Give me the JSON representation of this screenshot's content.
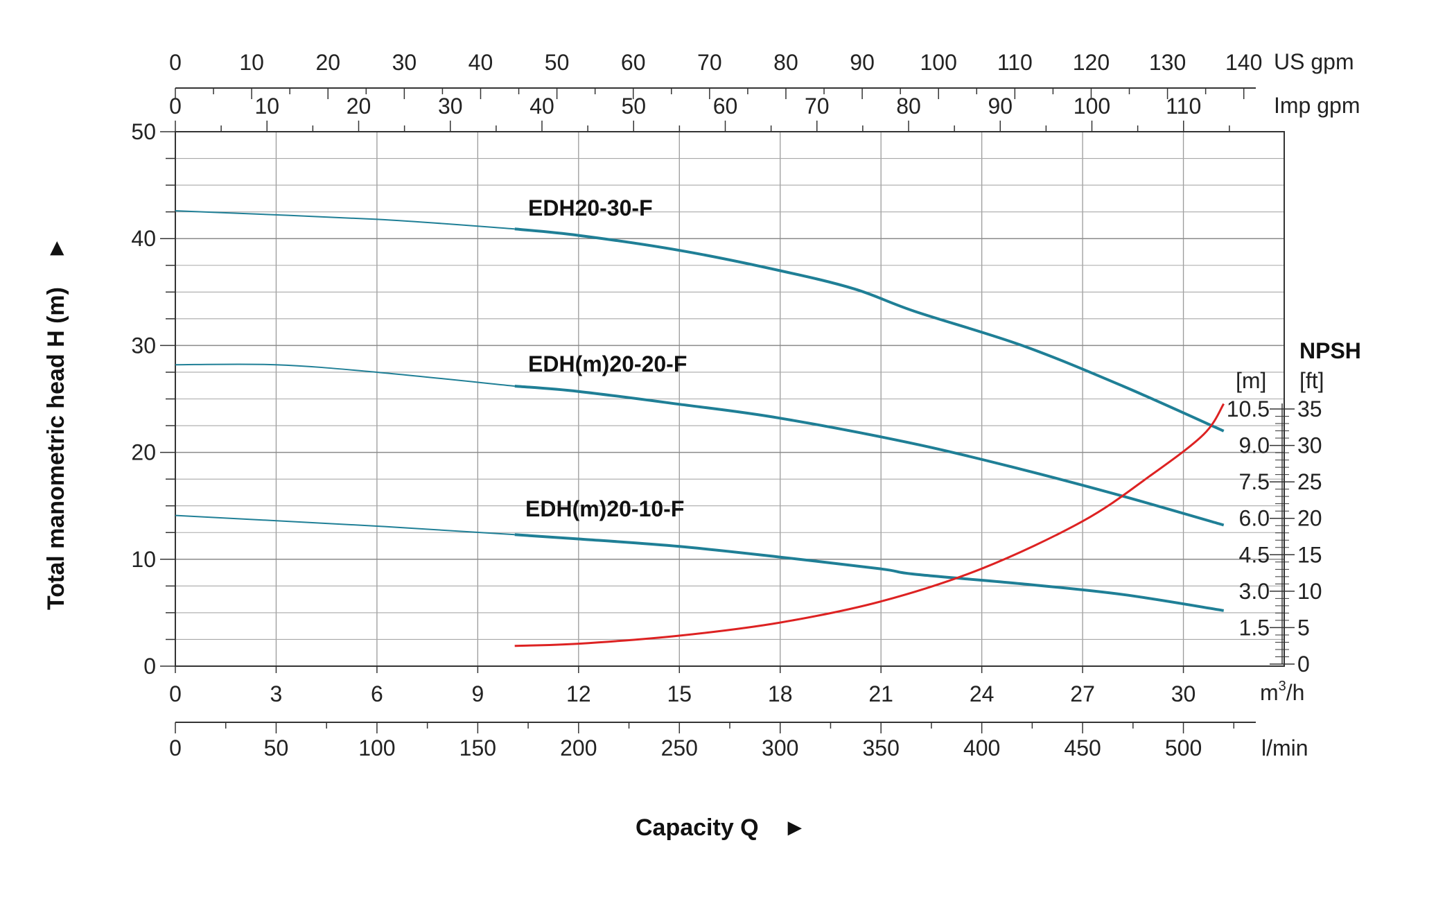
{
  "chart_data": {
    "type": "line",
    "xlabel": "Capacity Q",
    "ylabel": "Total manometric head H (m)",
    "xlim": [
      0,
      33
    ],
    "ylim": [
      0,
      50
    ],
    "x_ticks": [
      "0",
      "3",
      "6",
      "9",
      "12",
      "15",
      "18",
      "21",
      "24",
      "27",
      "30"
    ],
    "x_unit": "m³/h",
    "x_unit_base": "m",
    "x_unit_sup": "3",
    "x_unit_tail": "/h",
    "y_ticks": [
      "0",
      "10",
      "20",
      "30",
      "40",
      "50"
    ],
    "lpm_ticks": [
      "0",
      "50",
      "100",
      "150",
      "200",
      "250",
      "300",
      "350",
      "400",
      "450",
      "500"
    ],
    "lpm_unit": "l/min",
    "imp_ticks": [
      "0",
      "10",
      "20",
      "30",
      "40",
      "50",
      "60",
      "70",
      "80",
      "90",
      "100",
      "110"
    ],
    "imp_unit": "Imp gpm",
    "us_ticks": [
      "0",
      "10",
      "20",
      "30",
      "40",
      "50",
      "60",
      "70",
      "80",
      "90",
      "100",
      "110",
      "120",
      "130",
      "140"
    ],
    "us_unit": "US gpm",
    "npsh": {
      "title": "NPSH",
      "unit_m": "[m]",
      "unit_ft": "[ft]",
      "m_ticks": [
        "1.5",
        "3.0",
        "4.5",
        "6.0",
        "7.5",
        "9.0",
        "10.5"
      ],
      "ft_ticks": [
        "0",
        "5",
        "10",
        "15",
        "20",
        "25",
        "30",
        "35"
      ],
      "ylim_ft": [
        0,
        35
      ],
      "color": "#dd2222",
      "x": [
        10.1,
        12,
        15,
        18,
        21,
        24,
        27,
        29,
        30.6,
        31.2
      ],
      "y_ft": [
        2.5,
        2.8,
        3.9,
        5.7,
        8.6,
        13.1,
        19.6,
        25.8,
        31.5,
        35.7
      ]
    },
    "series": [
      {
        "name": "EDH20-30-F",
        "color": "#1f7f96",
        "x": [
          0,
          6,
          10.1,
          12,
          15,
          18,
          20.2,
          22,
          25.2,
          28.2,
          31.2
        ],
        "y": [
          42.6,
          41.8,
          40.9,
          40.3,
          38.9,
          37.0,
          35.3,
          33.2,
          30.0,
          26.2,
          22.0
        ]
      },
      {
        "name": "EDH(m)20-20-F",
        "color": "#1f7f96",
        "x": [
          0,
          3,
          6,
          10.1,
          12,
          15,
          18,
          22,
          25.2,
          28.2,
          31.2
        ],
        "y": [
          28.2,
          28.2,
          27.5,
          26.2,
          25.7,
          24.5,
          23.2,
          20.8,
          18.4,
          15.9,
          13.2
        ]
      },
      {
        "name": "EDH(m)20-10-F",
        "color": "#1f7f96",
        "x": [
          0,
          6,
          10.1,
          12,
          15,
          18,
          21,
          22,
          25.2,
          28.2,
          31.2
        ],
        "y": [
          14.1,
          13.1,
          12.3,
          11.9,
          11.2,
          10.2,
          9.1,
          8.6,
          7.7,
          6.7,
          5.2
        ]
      }
    ],
    "grid": true
  }
}
